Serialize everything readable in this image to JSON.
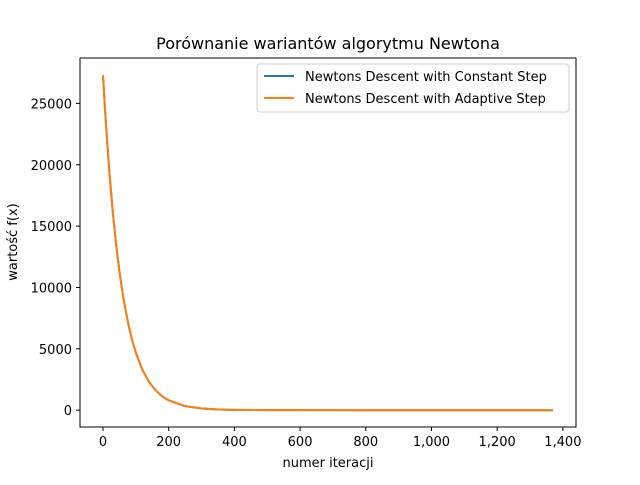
{
  "chart_data": {
    "type": "line",
    "title": "Porównanie wariantów algorytmu Newtona",
    "xlabel": "numer iteracji",
    "ylabel": "wartość f(x)",
    "xlim": [
      -70,
      1440
    ],
    "ylim": [
      -1370,
      28700
    ],
    "xticks": [
      0,
      200,
      400,
      600,
      800,
      1000,
      1200,
      1400
    ],
    "xtick_labels": [
      "0",
      "200",
      "400",
      "600",
      "800",
      "1,000",
      "1,200",
      "1,400"
    ],
    "yticks": [
      0,
      5000,
      10000,
      15000,
      20000,
      25000
    ],
    "ytick_labels": [
      "0",
      "5000",
      "10000",
      "15000",
      "20000",
      "25000"
    ],
    "grid": false,
    "legend_position": "top-right",
    "series": [
      {
        "name": "Newtons Descent with Constant Step",
        "color": "#1f77b4",
        "x": [
          0,
          5,
          10,
          20,
          30,
          40,
          50,
          60,
          70,
          80,
          90,
          100,
          120,
          140,
          160,
          180,
          200,
          250,
          300,
          350,
          400,
          500,
          600,
          800,
          1000,
          1200,
          1370
        ],
        "y": [
          27300,
          25020,
          22900,
          19200,
          16100,
          13500,
          11300,
          9500,
          7960,
          6670,
          5590,
          4690,
          3290,
          2310,
          1620,
          1140,
          800,
          330,
          140,
          60,
          25,
          5,
          1,
          0,
          0,
          0,
          0
        ]
      },
      {
        "name": "Newtons Descent with Adaptive Step",
        "color": "#ff7f0e",
        "x": [
          0,
          5,
          10,
          20,
          30,
          40,
          50,
          60,
          70,
          80,
          90,
          100,
          120,
          140,
          160,
          180,
          200,
          250,
          300,
          350,
          400,
          500,
          600,
          800,
          1000,
          1200,
          1370
        ],
        "y": [
          27300,
          25020,
          22900,
          19200,
          16100,
          13500,
          11300,
          9500,
          7960,
          6670,
          5590,
          4690,
          3290,
          2310,
          1620,
          1140,
          800,
          330,
          140,
          60,
          25,
          5,
          1,
          0,
          0,
          0,
          0
        ]
      }
    ]
  }
}
